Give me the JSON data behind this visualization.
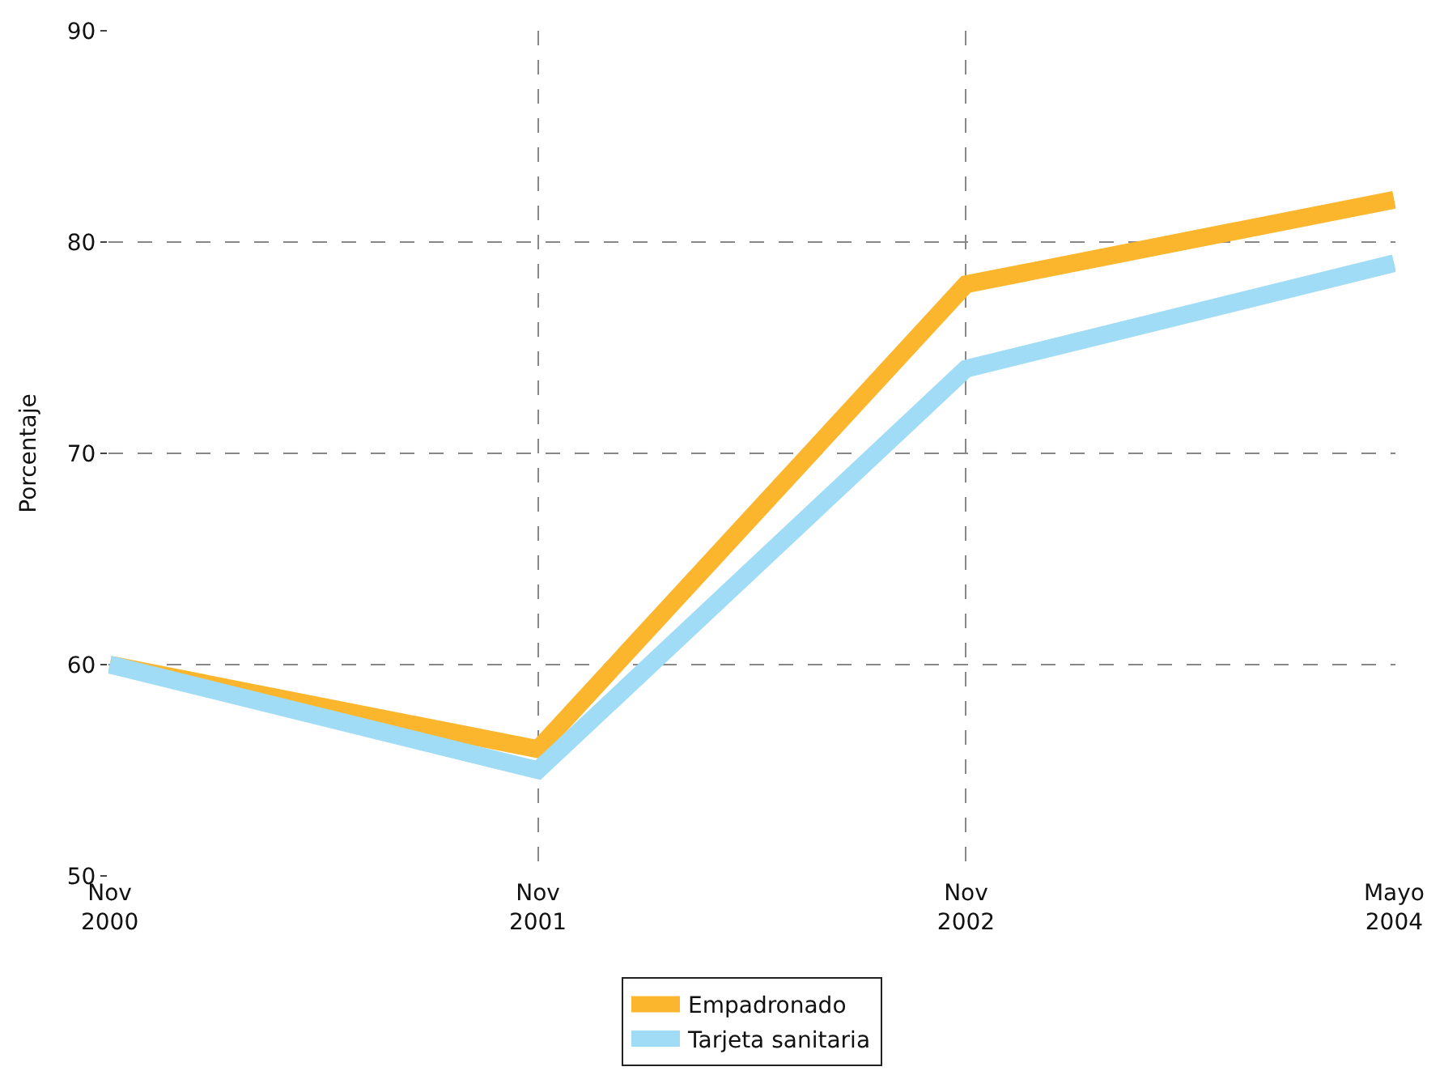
{
  "chart_data": {
    "type": "line",
    "ylabel": "Porcentaje",
    "categories": [
      "Nov\n2000",
      "Nov\n2001",
      "Nov\n2002",
      "Mayo\n2004"
    ],
    "series": [
      {
        "name": "Empadronado",
        "color": "#fbb62d",
        "values": [
          60,
          56,
          78,
          82
        ]
      },
      {
        "name": "Tarjeta sanitaria",
        "color": "#a0dcf5",
        "values": [
          60,
          55,
          74,
          79
        ]
      }
    ],
    "ylim": [
      50,
      90
    ],
    "yticks": [
      50,
      60,
      70,
      80,
      90
    ],
    "grid": true,
    "legend": "bottom",
    "marker": "none",
    "line_style": "solid"
  }
}
